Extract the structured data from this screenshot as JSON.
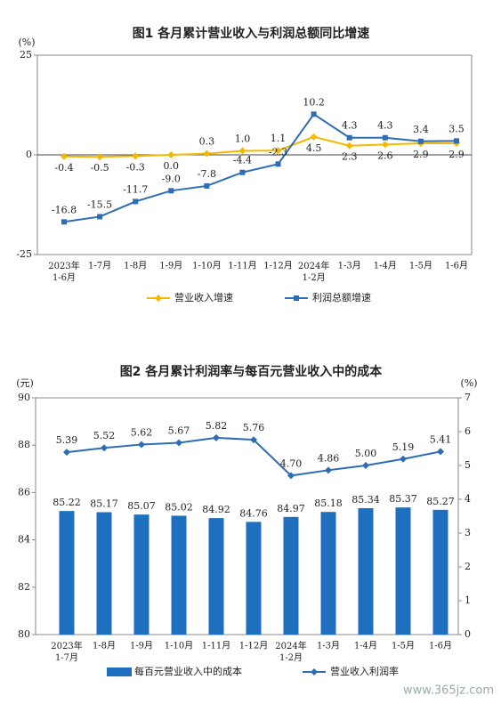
{
  "chart_data": [
    {
      "type": "line",
      "title": "图1  各月累计营业收入与利润总额同比增速",
      "y_unit": "(%)",
      "categories": [
        "2023年\n1-6月",
        "1-7月",
        "1-8月",
        "1-9月",
        "1-10月",
        "1-11月",
        "1-12月",
        "2024年\n1-2月",
        "1-3月",
        "1-4月",
        "1-5月",
        "1-6月"
      ],
      "ylim": [
        -25,
        25
      ],
      "yticks": [
        -25,
        0,
        25
      ],
      "series": [
        {
          "name": "营业收入增速",
          "color": "#f5b800",
          "marker": "diamond",
          "values": [
            -0.4,
            -0.5,
            -0.3,
            0.0,
            0.3,
            1.0,
            1.1,
            4.5,
            2.3,
            2.6,
            2.9,
            2.9
          ],
          "value_labels": [
            "-0.4",
            "-0.5",
            "-0.3",
            "0.0",
            "0.3",
            "1.0",
            "1.1",
            "4.5",
            "2.3",
            "2.6",
            "2.9",
            "2.9"
          ]
        },
        {
          "name": "利润总额增速",
          "color": "#2e6db4",
          "marker": "square",
          "values": [
            -16.8,
            -15.5,
            -11.7,
            -9.0,
            -7.8,
            -4.4,
            -2.3,
            10.2,
            4.3,
            4.3,
            3.4,
            3.5
          ],
          "value_labels": [
            "-16.8",
            "-15.5",
            "-11.7",
            "-9.0",
            "-7.8",
            "-4.4",
            "-2.3",
            "10.2",
            "4.3",
            "4.3",
            "3.4",
            "3.5"
          ]
        }
      ]
    },
    {
      "type": "bar",
      "title": "图2  各月累计利润率与每百元营业收入中的成本",
      "y_unit": "(元)",
      "y2_unit": "(%)",
      "categories": [
        "2023年\n1-7月",
        "1-8月",
        "1-9月",
        "1-10月",
        "1-11月",
        "1-12月",
        "2024年\n1-2月",
        "1-3月",
        "1-4月",
        "1-5月",
        "1-6月"
      ],
      "ylim": [
        80,
        90
      ],
      "yticks": [
        80,
        82,
        84,
        86,
        88,
        90
      ],
      "y2lim": [
        0,
        7
      ],
      "y2ticks": [
        0,
        1,
        2,
        3,
        4,
        5,
        6,
        7
      ],
      "series": [
        {
          "name": "每百元营业收入中的成本",
          "color": "#1f6fbf",
          "type": "bar",
          "values": [
            85.22,
            85.17,
            85.07,
            85.02,
            84.92,
            84.76,
            84.97,
            85.18,
            85.34,
            85.37,
            85.27
          ]
        },
        {
          "name": "营业收入利润率",
          "color": "#2e6db4",
          "type": "line",
          "axis": "y2",
          "marker": "diamond",
          "values": [
            5.39,
            5.52,
            5.62,
            5.67,
            5.82,
            5.76,
            4.7,
            4.86,
            5.0,
            5.19,
            5.41
          ],
          "value_labels": [
            "5.39",
            "5.52",
            "5.62",
            "5.67",
            "5.82",
            "5.76",
            "4.70",
            "4.86",
            "5.00",
            "5.19",
            "5.41"
          ]
        }
      ]
    }
  ],
  "watermark": "www.365jz.com"
}
